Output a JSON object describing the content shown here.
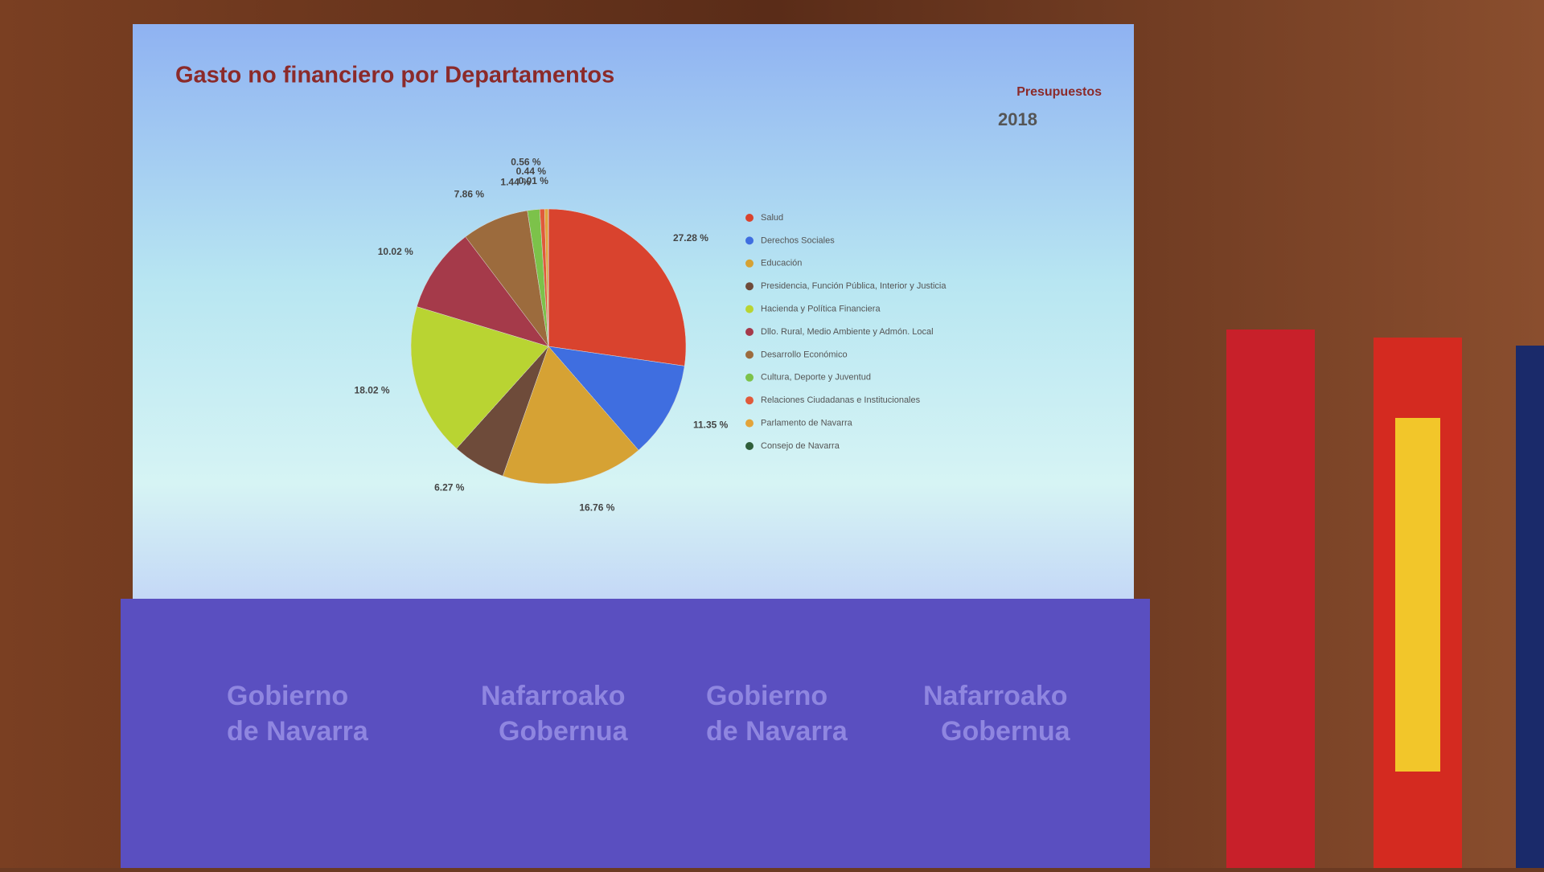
{
  "chart_data": {
    "type": "pie",
    "title": "Gasto no financiero por Departamentos",
    "categories": [
      "Salud",
      "Derechos Sociales",
      "Educación",
      "Presidencia, Función Pública, Interior y Justicia",
      "Hacienda y Política Financiera",
      "Dllo. Rural, Medio Ambiente y Admón. Local",
      "Desarrollo Económico",
      "Cultura, Deporte y Juventud",
      "Relaciones Ciudadanas e Institucionales",
      "Parlamento de Navarra",
      "Consejo de Navarra"
    ],
    "values": [
      27.28,
      11.35,
      16.76,
      6.27,
      18.02,
      10.02,
      7.86,
      1.44,
      0.56,
      0.44,
      0.01
    ],
    "value_labels": [
      "27.28 %",
      "11.35 %",
      "16.76 %",
      "6.27 %",
      "18.02 %",
      "10.02 %",
      "7.86 %",
      "1.44 %",
      "0.56 %",
      "0.44 %",
      "0.01 %"
    ],
    "colors": [
      "#d9432e",
      "#3f6ee0",
      "#d6a234",
      "#6e4b3a",
      "#b9d432",
      "#a53a4a",
      "#9c6b3d",
      "#7cc24a",
      "#e05a3a",
      "#e3a43a",
      "#2f5e3a"
    ],
    "legend": "right"
  },
  "slide_brand": {
    "label": "Presupuestos",
    "year": "2018"
  },
  "banner": [
    [
      "Gobierno",
      "de Navarra"
    ],
    [
      "Nafarroako",
      "Gobernua"
    ],
    [
      "Gobierno",
      "de Navarra"
    ],
    [
      "Nafarroako",
      "Gobernua"
    ]
  ]
}
